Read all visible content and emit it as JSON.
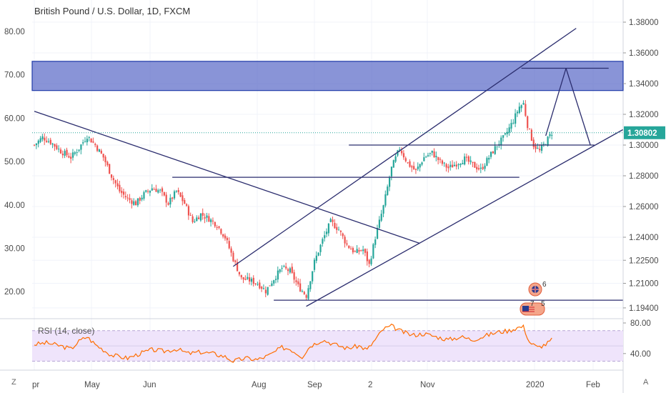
{
  "header": {
    "title": "British Pound / U.S. Dollar, 1D, FXCM"
  },
  "colors": {
    "up": "#26a69a",
    "down": "#ef5350",
    "trendline": "#2b2d6e",
    "zone_fill": "#5b6bc8",
    "zone_border": "#1f3aa8",
    "rsi_line": "#ff6d00",
    "rsi_band": "#efe4fb",
    "price_badge": "#26a69a",
    "grid": "#f0f3fa"
  },
  "chart_data": {
    "type": "candlestick",
    "main_pane": {
      "left_axis": {
        "ticks": [
          "80.00",
          "70.00",
          "60.00",
          "50.00",
          "40.00",
          "30.00",
          "20.00"
        ],
        "values": [
          80,
          70,
          60,
          50,
          40,
          30,
          20
        ]
      },
      "right_axis": {
        "ticks": [
          "1.40000",
          "1.38000",
          "1.36000",
          "1.34000",
          "1.32000",
          "1.30000",
          "1.28000",
          "1.26000",
          "1.24000",
          "1.22500",
          "1.21000",
          "1.19400"
        ],
        "values": [
          1.4,
          1.38,
          1.36,
          1.34,
          1.32,
          1.3,
          1.28,
          1.26,
          1.24,
          1.225,
          1.21,
          1.194
        ]
      },
      "last_price": "1.30802",
      "last_price_value": 1.30802,
      "x_axis_labels": [
        "pr",
        "May",
        "Jun",
        "Aug",
        "Sep",
        "2",
        "Nov",
        "2020",
        "Feb"
      ],
      "close_path": [
        [
          0,
          1.3
        ],
        [
          4,
          1.305
        ],
        [
          8,
          1.302
        ],
        [
          13,
          1.296
        ],
        [
          18,
          1.292
        ],
        [
          22,
          1.298
        ],
        [
          26,
          1.306
        ],
        [
          30,
          1.3
        ],
        [
          34,
          1.292
        ],
        [
          38,
          1.28
        ],
        [
          42,
          1.27
        ],
        [
          46,
          1.265
        ],
        [
          50,
          1.262
        ],
        [
          54,
          1.268
        ],
        [
          58,
          1.272
        ],
        [
          62,
          1.27
        ],
        [
          66,
          1.262
        ],
        [
          70,
          1.27
        ],
        [
          74,
          1.262
        ],
        [
          78,
          1.25
        ],
        [
          82,
          1.255
        ],
        [
          86,
          1.252
        ],
        [
          90,
          1.248
        ],
        [
          94,
          1.24
        ],
        [
          98,
          1.226
        ],
        [
          102,
          1.213
        ],
        [
          106,
          1.212
        ],
        [
          110,
          1.21
        ],
        [
          114,
          1.205
        ],
        [
          118,
          1.213
        ],
        [
          122,
          1.22
        ],
        [
          126,
          1.218
        ],
        [
          130,
          1.208
        ],
        [
          134,
          1.202
        ],
        [
          138,
          1.224
        ],
        [
          142,
          1.238
        ],
        [
          146,
          1.25
        ],
        [
          150,
          1.245
        ],
        [
          154,
          1.235
        ],
        [
          158,
          1.23
        ],
        [
          162,
          1.232
        ],
        [
          165,
          1.222
        ],
        [
          168,
          1.24
        ],
        [
          172,
          1.26
        ],
        [
          176,
          1.285
        ],
        [
          180,
          1.298
        ],
        [
          184,
          1.288
        ],
        [
          188,
          1.283
        ],
        [
          192,
          1.292
        ],
        [
          196,
          1.295
        ],
        [
          200,
          1.289
        ],
        [
          204,
          1.285
        ],
        [
          208,
          1.288
        ],
        [
          212,
          1.291
        ],
        [
          216,
          1.287
        ],
        [
          220,
          1.284
        ],
        [
          224,
          1.292
        ],
        [
          228,
          1.3
        ],
        [
          232,
          1.306
        ],
        [
          236,
          1.316
        ],
        [
          239,
          1.325
        ],
        [
          241,
          1.327
        ],
        [
          243,
          1.313
        ],
        [
          246,
          1.3
        ],
        [
          249,
          1.296
        ],
        [
          252,
          1.302
        ],
        [
          255,
          1.30802
        ]
      ],
      "zone": {
        "from": 1.3355,
        "to": 1.3545
      },
      "trendlines": [
        {
          "from": [
            0,
            1.322
          ],
          "to": [
            190,
            1.236
          ]
        },
        {
          "from": [
            68,
            1.279
          ],
          "to": [
            239,
            1.279
          ]
        },
        {
          "from": [
            98,
            1.221
          ],
          "to": [
            267,
            1.376
          ]
        },
        {
          "from": [
            134,
            1.195
          ],
          "to": [
            290,
            1.31
          ]
        },
        {
          "from": [
            155,
            1.3
          ],
          "to": [
            276,
            1.3
          ]
        },
        {
          "from": [
            118,
            1.199
          ],
          "to": [
            290,
            1.199
          ]
        },
        {
          "from": [
            240,
            1.35
          ],
          "to": [
            283,
            1.35
          ]
        },
        {
          "from": [
            252,
            1.306
          ],
          "to": [
            262,
            1.35
          ]
        },
        {
          "from": [
            262,
            1.35
          ],
          "to": [
            274,
            1.3
          ]
        }
      ]
    },
    "rsi_pane": {
      "label": "RSI (14, close)",
      "ticks": [
        "80.00",
        "40.00"
      ],
      "values": [
        80,
        40
      ],
      "band": [
        30,
        70
      ],
      "series": [
        [
          0,
          52
        ],
        [
          6,
          54
        ],
        [
          13,
          50
        ],
        [
          18,
          46
        ],
        [
          22,
          56
        ],
        [
          26,
          62
        ],
        [
          30,
          52
        ],
        [
          38,
          38
        ],
        [
          46,
          34
        ],
        [
          52,
          40
        ],
        [
          58,
          45
        ],
        [
          64,
          43
        ],
        [
          70,
          46
        ],
        [
          76,
          40
        ],
        [
          82,
          42
        ],
        [
          88,
          40
        ],
        [
          94,
          36
        ],
        [
          98,
          30
        ],
        [
          104,
          34
        ],
        [
          110,
          32
        ],
        [
          116,
          38
        ],
        [
          122,
          48
        ],
        [
          126,
          46
        ],
        [
          132,
          36
        ],
        [
          136,
          50
        ],
        [
          142,
          58
        ],
        [
          148,
          52
        ],
        [
          154,
          47
        ],
        [
          160,
          50
        ],
        [
          164,
          45
        ],
        [
          168,
          58
        ],
        [
          172,
          72
        ],
        [
          176,
          76
        ],
        [
          180,
          70
        ],
        [
          186,
          64
        ],
        [
          192,
          66
        ],
        [
          198,
          62
        ],
        [
          204,
          58
        ],
        [
          210,
          62
        ],
        [
          216,
          58
        ],
        [
          222,
          63
        ],
        [
          228,
          68
        ],
        [
          234,
          70
        ],
        [
          238,
          74
        ],
        [
          241,
          75
        ],
        [
          244,
          55
        ],
        [
          248,
          48
        ],
        [
          252,
          52
        ],
        [
          255,
          58
        ]
      ]
    }
  },
  "events": {
    "top_badge": "6",
    "bottom_badge_a": "7",
    "bottom_badge_b": "5"
  },
  "corners": {
    "left": "Z",
    "right": "A"
  }
}
